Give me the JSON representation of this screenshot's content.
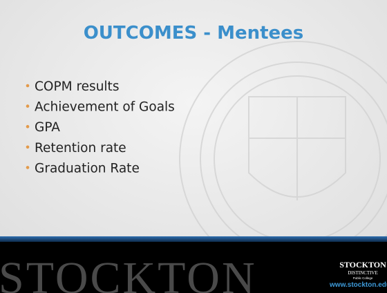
{
  "title": "OUTCOMES - Mentees",
  "bullets": [
    "COPM results",
    "Achievement of Goals",
    "GPA",
    "Retention rate",
    "Graduation Rate"
  ],
  "footer": {
    "wordmark": "STOCKTON",
    "logo": {
      "name": "STOCKTON",
      "tagline": "DISTINCTIVE",
      "subtitle": "Public College",
      "url": "www.stockton.edu"
    }
  }
}
